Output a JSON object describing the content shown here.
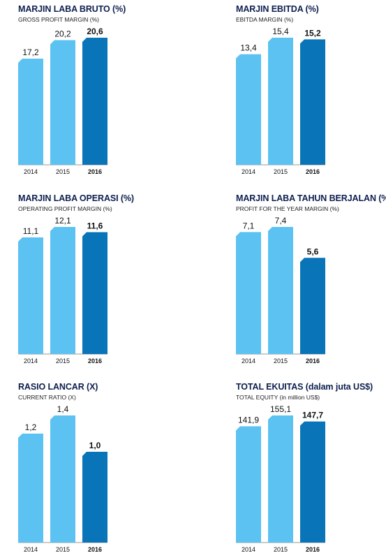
{
  "colors": {
    "light_bar": "#5bc2f2",
    "dark_bar": "#0a74b9",
    "title": "#0d1f4f",
    "axis": "#9a9a9a"
  },
  "chart_data": [
    {
      "type": "bar",
      "title": "MARJIN LABA BRUTO (%)",
      "subtitle": "GROSS PROFIT MARGIN (%)",
      "categories": [
        "2014",
        "2015",
        "2016"
      ],
      "values": [
        17.2,
        20.2,
        20.6
      ],
      "labels": [
        "17,2",
        "20,2",
        "20,6"
      ],
      "highlight_index": 2
    },
    {
      "type": "bar",
      "title": "MARJIN EBITDA (%)",
      "subtitle": "EBITDA MARGIN (%)",
      "categories": [
        "2014",
        "2015",
        "2016"
      ],
      "values": [
        13.4,
        15.4,
        15.2
      ],
      "labels": [
        "13,4",
        "15,4",
        "15,2"
      ],
      "highlight_index": 2
    },
    {
      "type": "bar",
      "title": "MARJIN LABA OPERASI (%)",
      "subtitle": "OPERATING PROFIT MARGIN (%)",
      "categories": [
        "2014",
        "2015",
        "2016"
      ],
      "values": [
        11.1,
        12.1,
        11.6
      ],
      "labels": [
        "11,1",
        "12,1",
        "11,6"
      ],
      "highlight_index": 2
    },
    {
      "type": "bar",
      "title": "MARJIN LABA TAHUN BERJALAN (%)",
      "subtitle": "PROFIT FOR THE YEAR MARGIN (%)",
      "categories": [
        "2014",
        "2015",
        "2016"
      ],
      "values": [
        7.1,
        7.4,
        5.6
      ],
      "labels": [
        "7,1",
        "7,4",
        "5,6"
      ],
      "highlight_index": 2
    },
    {
      "type": "bar",
      "title": "RASIO LANCAR (X)",
      "subtitle": "CURRENT RATIO (X)",
      "categories": [
        "2014",
        "2015",
        "2016"
      ],
      "values": [
        1.2,
        1.4,
        1.0
      ],
      "labels": [
        "1,2",
        "1,4",
        "1,0"
      ],
      "highlight_index": 2
    },
    {
      "type": "bar",
      "title": "TOTAL EKUITAS (dalam juta US$)",
      "subtitle": "TOTAL EQUITY (in million US$)",
      "categories": [
        "2014",
        "2015",
        "2016"
      ],
      "values": [
        141.9,
        155.1,
        147.7
      ],
      "labels": [
        "141,9",
        "155,1",
        "147,7"
      ],
      "highlight_index": 2
    }
  ]
}
